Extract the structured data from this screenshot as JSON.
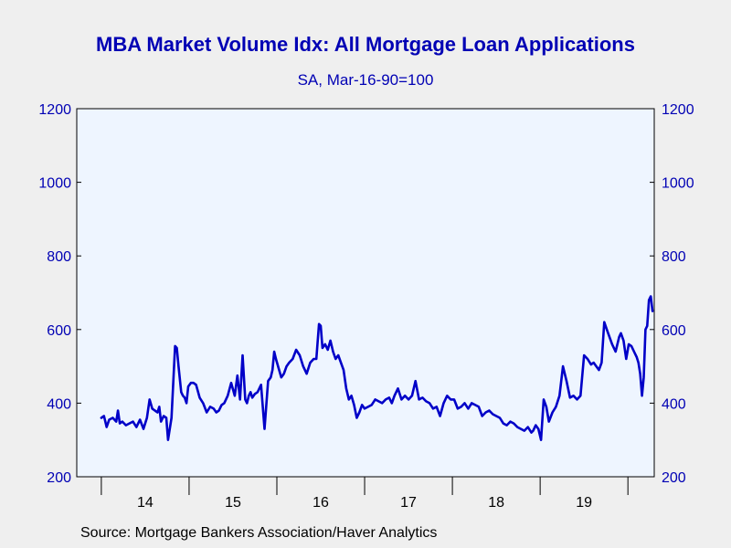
{
  "chart_data": {
    "type": "line",
    "title": "MBA Market Volume Idx: All Mortgage Loan Applications",
    "subtitle": "SA, Mar-16-90=100",
    "source": "Source:  Mortgage Bankers Association/Haver Analytics",
    "x_tick_labels": [
      "14",
      "15",
      "16",
      "17",
      "18",
      "19"
    ],
    "y_tick_labels": [
      "200",
      "400",
      "600",
      "800",
      "1000",
      "1200"
    ],
    "ylim": [
      200,
      1200
    ],
    "y_axis_both_sides": true,
    "grid": false,
    "line_color": "#0000c8",
    "plot_background": "#eef5ff",
    "series": [
      {
        "x": [
          2014.0,
          2014.03,
          2014.06,
          2014.09,
          2014.13,
          2014.17,
          2014.19,
          2014.21,
          2014.24,
          2014.28,
          2014.32,
          2014.36,
          2014.4,
          2014.44,
          2014.48,
          2014.52,
          2014.55,
          2014.58,
          2014.61,
          2014.64,
          2014.66,
          2014.68,
          2014.71,
          2014.74,
          2014.76,
          2014.8,
          2014.84,
          2014.86,
          2014.88,
          2014.91,
          2014.93,
          2014.95,
          2014.97,
          2014.99,
          2015.02,
          2015.05,
          2015.08,
          2015.12,
          2015.16,
          2015.2,
          2015.24,
          2015.28,
          2015.31,
          2015.34,
          2015.37,
          2015.4,
          2015.44,
          2015.48,
          2015.52,
          2015.55,
          2015.58,
          2015.61,
          2015.64,
          2015.66,
          2015.68,
          2015.7,
          2015.72,
          2015.75,
          2015.78,
          2015.82,
          2015.86,
          2015.9,
          2015.93,
          2015.95,
          2015.97,
          2015.99,
          2016.02,
          2016.05,
          2016.08,
          2016.11,
          2016.14,
          2016.18,
          2016.22,
          2016.26,
          2016.3,
          2016.34,
          2016.38,
          2016.42,
          2016.45,
          2016.48,
          2016.5,
          2016.52,
          2016.55,
          2016.58,
          2016.61,
          2016.64,
          2016.67,
          2016.7,
          2016.73,
          2016.76,
          2016.79,
          2016.82,
          2016.85,
          2016.88,
          2016.91,
          2016.94,
          2016.97,
          2017.0,
          2017.04,
          2017.08,
          2017.12,
          2017.16,
          2017.2,
          2017.24,
          2017.28,
          2017.31,
          2017.34,
          2017.38,
          2017.42,
          2017.46,
          2017.5,
          2017.54,
          2017.58,
          2017.62,
          2017.66,
          2017.7,
          2017.74,
          2017.78,
          2017.82,
          2017.86,
          2017.9,
          2017.94,
          2017.98,
          2018.02,
          2018.06,
          2018.1,
          2018.14,
          2018.18,
          2018.22,
          2018.26,
          2018.3,
          2018.34,
          2018.38,
          2018.42,
          2018.46,
          2018.5,
          2018.54,
          2018.58,
          2018.62,
          2018.66,
          2018.7,
          2018.74,
          2018.78,
          2018.82,
          2018.86,
          2018.9,
          2018.92,
          2018.95,
          2018.98,
          2019.01,
          2019.04,
          2019.07,
          2019.1,
          2019.14,
          2019.18,
          2019.22,
          2019.26,
          2019.3,
          2019.34,
          2019.38,
          2019.42,
          2019.46,
          2019.5,
          2019.54,
          2019.58,
          2019.61,
          2019.64,
          2019.67,
          2019.7,
          2019.73,
          2019.76,
          2019.79,
          2019.82,
          2019.86,
          2019.9,
          2019.92,
          2019.95,
          2019.98,
          2020.01,
          2020.04,
          2020.07,
          2020.1,
          2020.12,
          2020.14,
          2020.16,
          2020.18,
          2020.2,
          2020.22,
          2020.24,
          2020.26,
          2020.28
        ],
        "y": [
          360,
          365,
          335,
          355,
          360,
          350,
          380,
          345,
          350,
          340,
          345,
          350,
          335,
          355,
          330,
          360,
          410,
          385,
          380,
          375,
          390,
          350,
          365,
          360,
          300,
          360,
          555,
          550,
          500,
          430,
          420,
          415,
          400,
          445,
          455,
          455,
          450,
          415,
          400,
          375,
          390,
          385,
          375,
          380,
          395,
          400,
          420,
          455,
          420,
          475,
          410,
          530,
          410,
          400,
          420,
          430,
          415,
          425,
          430,
          450,
          330,
          460,
          470,
          490,
          540,
          520,
          495,
          470,
          480,
          500,
          510,
          520,
          545,
          530,
          500,
          480,
          510,
          520,
          520,
          615,
          610,
          550,
          560,
          545,
          570,
          540,
          520,
          530,
          510,
          490,
          440,
          410,
          420,
          395,
          360,
          375,
          395,
          385,
          390,
          395,
          410,
          405,
          400,
          410,
          415,
          400,
          420,
          440,
          410,
          420,
          410,
          420,
          460,
          410,
          415,
          405,
          400,
          385,
          390,
          365,
          400,
          420,
          410,
          410,
          385,
          390,
          400,
          385,
          400,
          395,
          390,
          365,
          375,
          380,
          370,
          365,
          360,
          345,
          340,
          350,
          345,
          335,
          330,
          325,
          335,
          320,
          325,
          340,
          330,
          300,
          410,
          390,
          350,
          375,
          390,
          420,
          500,
          460,
          415,
          420,
          410,
          420,
          530,
          520,
          505,
          510,
          500,
          490,
          510,
          620,
          600,
          580,
          560,
          540,
          580,
          590,
          570,
          520,
          560,
          555,
          540,
          525,
          510,
          480,
          420,
          470,
          600,
          610,
          680,
          690,
          650
        ]
      }
    ]
  }
}
